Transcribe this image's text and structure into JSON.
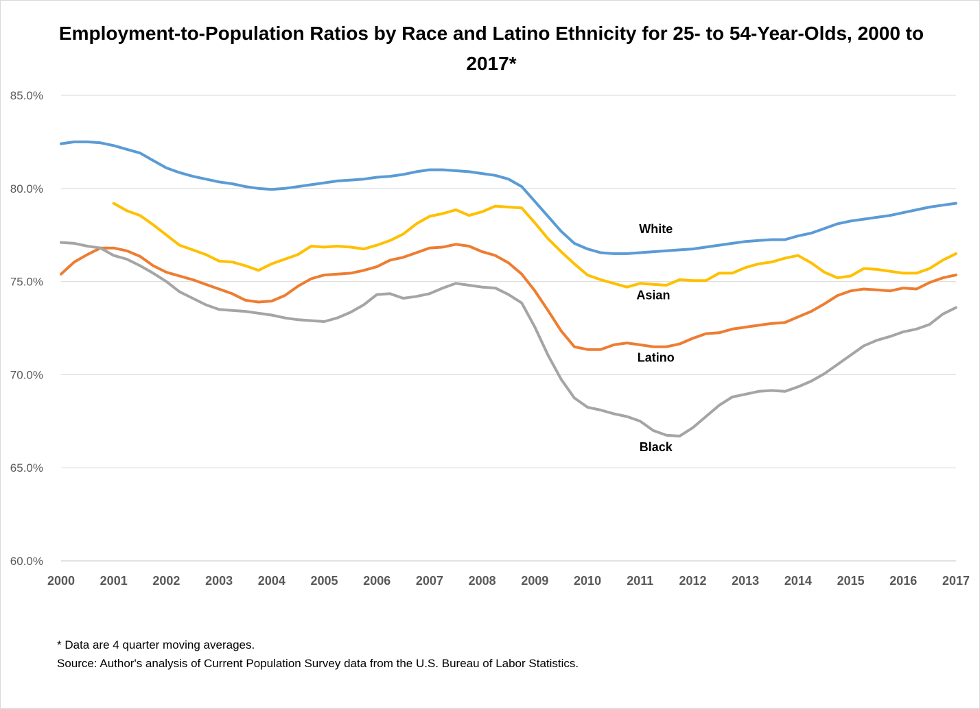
{
  "chart_data": {
    "type": "line",
    "title": "Employment-to-Population Ratios by Race and Latino Ethnicity for 25- to 54-Year-Olds, 2000 to 2017*",
    "xlabel": "",
    "ylabel": "",
    "xlim": [
      2000,
      2017
    ],
    "ylim": [
      60,
      85
    ],
    "x_ticks": [
      "2000",
      "2001",
      "2002",
      "2003",
      "2004",
      "2005",
      "2006",
      "2007",
      "2008",
      "2009",
      "2010",
      "2011",
      "2012",
      "2013",
      "2014",
      "2015",
      "2016",
      "2017"
    ],
    "y_ticks": [
      60,
      65,
      70,
      75,
      80,
      85
    ],
    "y_tick_labels": [
      "60.0%",
      "65.0%",
      "70.0%",
      "75.0%",
      "80.0%",
      "85.0%"
    ],
    "grid": true,
    "legend": "none (series labeled directly on chart)",
    "series": [
      {
        "name": "White",
        "color": "#5b9bd5",
        "points": [
          [
            2000,
            82.4
          ],
          [
            2000.25,
            82.5
          ],
          [
            2000.5,
            82.5
          ],
          [
            2000.75,
            82.45
          ],
          [
            2001,
            82.3
          ],
          [
            2001.25,
            82.1
          ],
          [
            2001.5,
            81.9
          ],
          [
            2001.75,
            81.5
          ],
          [
            2002,
            81.1
          ],
          [
            2002.25,
            80.85
          ],
          [
            2002.5,
            80.65
          ],
          [
            2002.75,
            80.5
          ],
          [
            2003,
            80.35
          ],
          [
            2003.25,
            80.25
          ],
          [
            2003.5,
            80.1
          ],
          [
            2003.75,
            80.0
          ],
          [
            2004,
            79.95
          ],
          [
            2004.25,
            80.0
          ],
          [
            2004.5,
            80.1
          ],
          [
            2004.75,
            80.2
          ],
          [
            2005,
            80.3
          ],
          [
            2005.25,
            80.4
          ],
          [
            2005.5,
            80.45
          ],
          [
            2005.75,
            80.5
          ],
          [
            2006,
            80.6
          ],
          [
            2006.25,
            80.65
          ],
          [
            2006.5,
            80.75
          ],
          [
            2006.75,
            80.9
          ],
          [
            2007,
            81.0
          ],
          [
            2007.25,
            81.0
          ],
          [
            2007.5,
            80.95
          ],
          [
            2007.75,
            80.9
          ],
          [
            2008,
            80.8
          ],
          [
            2008.25,
            80.7
          ],
          [
            2008.5,
            80.5
          ],
          [
            2008.75,
            80.1
          ],
          [
            2009,
            79.3
          ],
          [
            2009.25,
            78.5
          ],
          [
            2009.5,
            77.7
          ],
          [
            2009.75,
            77.05
          ],
          [
            2010,
            76.75
          ],
          [
            2010.25,
            76.55
          ],
          [
            2010.5,
            76.5
          ],
          [
            2010.75,
            76.5
          ],
          [
            2011,
            76.55
          ],
          [
            2011.25,
            76.6
          ],
          [
            2011.5,
            76.65
          ],
          [
            2011.75,
            76.7
          ],
          [
            2012,
            76.75
          ],
          [
            2012.25,
            76.85
          ],
          [
            2012.5,
            76.95
          ],
          [
            2012.75,
            77.05
          ],
          [
            2013,
            77.15
          ],
          [
            2013.25,
            77.2
          ],
          [
            2013.5,
            77.25
          ],
          [
            2013.75,
            77.25
          ],
          [
            2014,
            77.45
          ],
          [
            2014.25,
            77.6
          ],
          [
            2014.5,
            77.85
          ],
          [
            2014.75,
            78.1
          ],
          [
            2015,
            78.25
          ],
          [
            2015.25,
            78.35
          ],
          [
            2015.5,
            78.45
          ],
          [
            2015.75,
            78.55
          ],
          [
            2016,
            78.7
          ],
          [
            2016.25,
            78.85
          ],
          [
            2016.5,
            79.0
          ],
          [
            2016.75,
            79.1
          ],
          [
            2017,
            79.2
          ]
        ]
      },
      {
        "name": "Asian",
        "color": "#ffc000",
        "points": [
          [
            2001,
            79.2
          ],
          [
            2001.25,
            78.8
          ],
          [
            2001.5,
            78.55
          ],
          [
            2001.75,
            78.05
          ],
          [
            2002,
            77.5
          ],
          [
            2002.25,
            76.95
          ],
          [
            2002.5,
            76.7
          ],
          [
            2002.75,
            76.45
          ],
          [
            2003,
            76.1
          ],
          [
            2003.25,
            76.05
          ],
          [
            2003.5,
            75.85
          ],
          [
            2003.75,
            75.6
          ],
          [
            2004,
            75.95
          ],
          [
            2004.25,
            76.2
          ],
          [
            2004.5,
            76.45
          ],
          [
            2004.75,
            76.9
          ],
          [
            2005,
            76.85
          ],
          [
            2005.25,
            76.9
          ],
          [
            2005.5,
            76.85
          ],
          [
            2005.75,
            76.75
          ],
          [
            2006,
            76.95
          ],
          [
            2006.25,
            77.2
          ],
          [
            2006.5,
            77.55
          ],
          [
            2006.75,
            78.1
          ],
          [
            2007,
            78.5
          ],
          [
            2007.25,
            78.65
          ],
          [
            2007.5,
            78.85
          ],
          [
            2007.75,
            78.55
          ],
          [
            2008,
            78.75
          ],
          [
            2008.25,
            79.05
          ],
          [
            2008.5,
            79.0
          ],
          [
            2008.75,
            78.95
          ],
          [
            2009,
            78.15
          ],
          [
            2009.25,
            77.3
          ],
          [
            2009.5,
            76.6
          ],
          [
            2009.75,
            75.95
          ],
          [
            2010,
            75.35
          ],
          [
            2010.25,
            75.1
          ],
          [
            2010.5,
            74.9
          ],
          [
            2010.75,
            74.7
          ],
          [
            2011,
            74.9
          ],
          [
            2011.25,
            74.85
          ],
          [
            2011.5,
            74.8
          ],
          [
            2011.75,
            75.1
          ],
          [
            2012,
            75.05
          ],
          [
            2012.25,
            75.05
          ],
          [
            2012.5,
            75.45
          ],
          [
            2012.75,
            75.45
          ],
          [
            2013,
            75.75
          ],
          [
            2013.25,
            75.95
          ],
          [
            2013.5,
            76.05
          ],
          [
            2013.75,
            76.25
          ],
          [
            2014,
            76.4
          ],
          [
            2014.25,
            76.0
          ],
          [
            2014.5,
            75.5
          ],
          [
            2014.75,
            75.2
          ],
          [
            2015,
            75.3
          ],
          [
            2015.25,
            75.7
          ],
          [
            2015.5,
            75.65
          ],
          [
            2015.75,
            75.55
          ],
          [
            2016,
            75.45
          ],
          [
            2016.25,
            75.45
          ],
          [
            2016.5,
            75.7
          ],
          [
            2016.75,
            76.15
          ],
          [
            2017,
            76.5
          ]
        ]
      },
      {
        "name": "Latino",
        "color": "#ed7d31",
        "points": [
          [
            2000,
            75.4
          ],
          [
            2000.25,
            76.05
          ],
          [
            2000.5,
            76.45
          ],
          [
            2000.75,
            76.8
          ],
          [
            2001,
            76.8
          ],
          [
            2001.25,
            76.65
          ],
          [
            2001.5,
            76.35
          ],
          [
            2001.75,
            75.85
          ],
          [
            2002,
            75.5
          ],
          [
            2002.25,
            75.3
          ],
          [
            2002.5,
            75.1
          ],
          [
            2002.75,
            74.85
          ],
          [
            2003,
            74.6
          ],
          [
            2003.25,
            74.35
          ],
          [
            2003.5,
            74.0
          ],
          [
            2003.75,
            73.9
          ],
          [
            2004,
            73.95
          ],
          [
            2004.25,
            74.25
          ],
          [
            2004.5,
            74.75
          ],
          [
            2004.75,
            75.15
          ],
          [
            2005,
            75.35
          ],
          [
            2005.25,
            75.4
          ],
          [
            2005.5,
            75.45
          ],
          [
            2005.75,
            75.6
          ],
          [
            2006,
            75.8
          ],
          [
            2006.25,
            76.15
          ],
          [
            2006.5,
            76.3
          ],
          [
            2006.75,
            76.55
          ],
          [
            2007,
            76.8
          ],
          [
            2007.25,
            76.85
          ],
          [
            2007.5,
            77.0
          ],
          [
            2007.75,
            76.9
          ],
          [
            2008,
            76.6
          ],
          [
            2008.25,
            76.4
          ],
          [
            2008.5,
            76.0
          ],
          [
            2008.75,
            75.4
          ],
          [
            2009,
            74.5
          ],
          [
            2009.25,
            73.45
          ],
          [
            2009.5,
            72.35
          ],
          [
            2009.75,
            71.5
          ],
          [
            2010,
            71.35
          ],
          [
            2010.25,
            71.35
          ],
          [
            2010.5,
            71.6
          ],
          [
            2010.75,
            71.7
          ],
          [
            2011,
            71.6
          ],
          [
            2011.25,
            71.5
          ],
          [
            2011.5,
            71.5
          ],
          [
            2011.75,
            71.65
          ],
          [
            2012,
            71.95
          ],
          [
            2012.25,
            72.2
          ],
          [
            2012.5,
            72.25
          ],
          [
            2012.75,
            72.45
          ],
          [
            2013,
            72.55
          ],
          [
            2013.25,
            72.65
          ],
          [
            2013.5,
            72.75
          ],
          [
            2013.75,
            72.8
          ],
          [
            2014,
            73.1
          ],
          [
            2014.25,
            73.4
          ],
          [
            2014.5,
            73.8
          ],
          [
            2014.75,
            74.25
          ],
          [
            2015,
            74.5
          ],
          [
            2015.25,
            74.6
          ],
          [
            2015.5,
            74.55
          ],
          [
            2015.75,
            74.5
          ],
          [
            2016,
            74.65
          ],
          [
            2016.25,
            74.6
          ],
          [
            2016.5,
            74.95
          ],
          [
            2016.75,
            75.2
          ],
          [
            2017,
            75.35
          ]
        ]
      },
      {
        "name": "Black",
        "color": "#a5a5a5",
        "points": [
          [
            2000,
            77.1
          ],
          [
            2000.25,
            77.05
          ],
          [
            2000.5,
            76.9
          ],
          [
            2000.75,
            76.8
          ],
          [
            2001,
            76.4
          ],
          [
            2001.25,
            76.2
          ],
          [
            2001.5,
            75.85
          ],
          [
            2001.75,
            75.45
          ],
          [
            2002,
            75.0
          ],
          [
            2002.25,
            74.45
          ],
          [
            2002.5,
            74.1
          ],
          [
            2002.75,
            73.75
          ],
          [
            2003,
            73.5
          ],
          [
            2003.25,
            73.45
          ],
          [
            2003.5,
            73.4
          ],
          [
            2003.75,
            73.3
          ],
          [
            2004,
            73.2
          ],
          [
            2004.25,
            73.05
          ],
          [
            2004.5,
            72.95
          ],
          [
            2004.75,
            72.9
          ],
          [
            2005,
            72.85
          ],
          [
            2005.25,
            73.05
          ],
          [
            2005.5,
            73.35
          ],
          [
            2005.75,
            73.75
          ],
          [
            2006,
            74.3
          ],
          [
            2006.25,
            74.35
          ],
          [
            2006.5,
            74.1
          ],
          [
            2006.75,
            74.2
          ],
          [
            2007,
            74.35
          ],
          [
            2007.25,
            74.65
          ],
          [
            2007.5,
            74.9
          ],
          [
            2007.75,
            74.8
          ],
          [
            2008,
            74.7
          ],
          [
            2008.25,
            74.65
          ],
          [
            2008.5,
            74.3
          ],
          [
            2008.75,
            73.85
          ],
          [
            2009,
            72.55
          ],
          [
            2009.25,
            71.05
          ],
          [
            2009.5,
            69.75
          ],
          [
            2009.75,
            68.75
          ],
          [
            2010,
            68.25
          ],
          [
            2010.25,
            68.1
          ],
          [
            2010.5,
            67.9
          ],
          [
            2010.75,
            67.75
          ],
          [
            2011,
            67.5
          ],
          [
            2011.25,
            67.0
          ],
          [
            2011.5,
            66.75
          ],
          [
            2011.75,
            66.7
          ],
          [
            2012,
            67.15
          ],
          [
            2012.25,
            67.75
          ],
          [
            2012.5,
            68.35
          ],
          [
            2012.75,
            68.8
          ],
          [
            2013,
            68.95
          ],
          [
            2013.25,
            69.1
          ],
          [
            2013.5,
            69.15
          ],
          [
            2013.75,
            69.1
          ],
          [
            2014,
            69.35
          ],
          [
            2014.25,
            69.65
          ],
          [
            2014.5,
            70.05
          ],
          [
            2014.75,
            70.55
          ],
          [
            2015,
            71.05
          ],
          [
            2015.25,
            71.55
          ],
          [
            2015.5,
            71.85
          ],
          [
            2015.75,
            72.05
          ],
          [
            2016,
            72.3
          ],
          [
            2016.25,
            72.45
          ],
          [
            2016.5,
            72.7
          ],
          [
            2016.75,
            73.25
          ],
          [
            2017,
            73.6
          ]
        ]
      }
    ],
    "annotations": [
      {
        "text": "White",
        "x": 2011.3,
        "y": 77.6
      },
      {
        "text": "Asian",
        "x": 2011.25,
        "y": 74.05
      },
      {
        "text": "Latino",
        "x": 2011.3,
        "y": 70.7
      },
      {
        "text": "Black",
        "x": 2011.3,
        "y": 65.9
      }
    ]
  },
  "footnotes": {
    "note": "* Data are 4 quarter moving averages.",
    "source": "Source: Author's analysis of Current Population Survey data from the U.S. Bureau of Labor Statistics."
  }
}
